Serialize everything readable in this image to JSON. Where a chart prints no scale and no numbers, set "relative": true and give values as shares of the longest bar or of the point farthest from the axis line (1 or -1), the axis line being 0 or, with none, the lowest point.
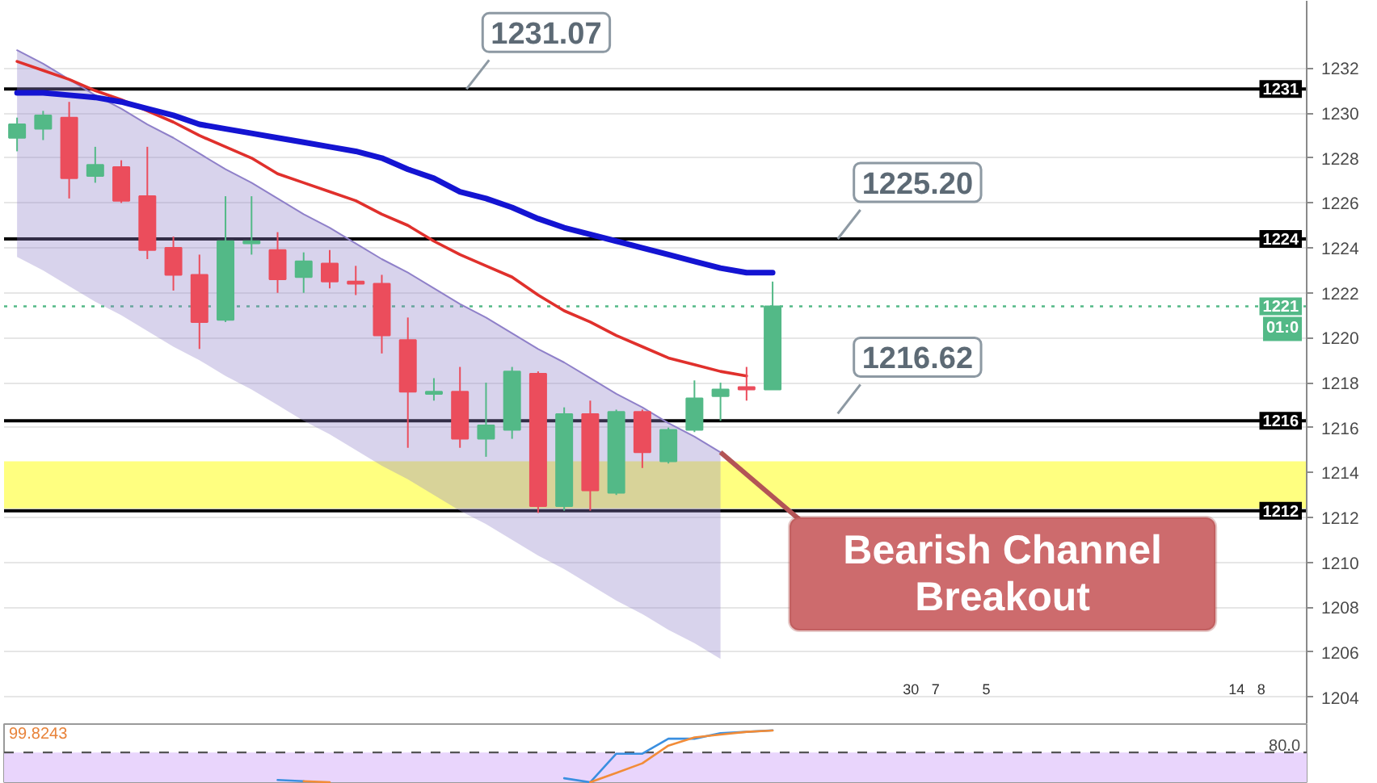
{
  "chart_data": [
    {
      "type": "candlestick",
      "categories": [
        null,
        null,
        null,
        null,
        null,
        null,
        null,
        null,
        null,
        null,
        null,
        null,
        null,
        null,
        null,
        null,
        null,
        null,
        null,
        null,
        null,
        null,
        null,
        null,
        null,
        null,
        null,
        null,
        null,
        null,
        null,
        null,
        null,
        null,
        null,
        null,
        null,
        null,
        null,
        null,
        null,
        null,
        null,
        null,
        null,
        null,
        null,
        null,
        null,
        null
      ],
      "ohlc": [
        [
          1228.9,
          1229.8,
          1228.3,
          1229.5
        ],
        [
          1229.3,
          1230.1,
          1228.8,
          1229.9
        ],
        [
          1229.8,
          1230.5,
          1226.2,
          1227.1
        ],
        [
          1227.2,
          1228.5,
          1226.9,
          1227.7
        ],
        [
          1227.6,
          1227.9,
          1226.0,
          1226.1
        ],
        [
          1226.3,
          1228.5,
          1223.5,
          1223.9
        ],
        [
          1224.0,
          1224.5,
          1222.1,
          1222.8
        ],
        [
          1222.8,
          1223.7,
          1219.5,
          1220.7
        ],
        [
          1220.8,
          1226.3,
          1220.7,
          1224.3
        ],
        [
          1224.2,
          1226.3,
          1223.7,
          1224.3
        ],
        [
          1223.9,
          1224.7,
          1222.0,
          1222.6
        ],
        [
          1222.7,
          1223.8,
          1222.0,
          1223.4
        ],
        [
          1223.3,
          1223.9,
          1222.2,
          1222.5
        ],
        [
          1222.5,
          1223.2,
          1221.9,
          1222.4
        ],
        [
          1222.4,
          1222.8,
          1219.3,
          1220.1
        ],
        [
          1219.9,
          1220.9,
          1215.1,
          1217.6
        ],
        [
          1217.5,
          1218.2,
          1217.2,
          1217.6
        ],
        [
          1217.6,
          1218.7,
          1215.1,
          1215.5
        ],
        [
          1215.5,
          1218.0,
          1214.7,
          1216.1
        ],
        [
          1215.9,
          1218.7,
          1215.5,
          1218.5
        ],
        [
          1218.4,
          1218.5,
          1212.2,
          1212.5
        ],
        [
          1212.5,
          1216.9,
          1212.3,
          1216.6
        ],
        [
          1216.6,
          1217.2,
          1212.3,
          1213.2
        ],
        [
          1213.1,
          1216.8,
          1213.0,
          1216.7
        ],
        [
          1216.7,
          1216.8,
          1214.2,
          1214.9
        ],
        [
          1214.5,
          1216.0,
          1214.4,
          1215.9
        ],
        [
          1215.9,
          1218.1,
          1215.8,
          1217.3
        ],
        [
          1217.4,
          1218.0,
          1216.3,
          1217.7
        ],
        [
          1217.8,
          1218.7,
          1217.2,
          1217.7
        ],
        [
          1217.7,
          1222.5,
          1217.7,
          1221.4
        ],
        null,
        null,
        null,
        null,
        null,
        null,
        null,
        null,
        null,
        null,
        null,
        null,
        null,
        null,
        null,
        null,
        null,
        null,
        null,
        null
      ],
      "colors": [
        "#53b987",
        "#53b987",
        "#eb4d5c",
        "#53b987",
        "#eb4d5c",
        "#eb4d5c",
        "#eb4d5c",
        "#eb4d5c",
        "#53b987",
        "#53b987",
        "#eb4d5c",
        "#53b987",
        "#eb4d5c",
        "#eb4d5c",
        "#eb4d5c",
        "#eb4d5c",
        "#53b987",
        "#eb4d5c",
        "#53b987",
        "#53b987",
        "#eb4d5c",
        "#53b987",
        "#eb4d5c",
        "#53b987",
        "#eb4d5c",
        "#53b987",
        "#53b987",
        "#53b987",
        "#eb4d5c",
        "#53b987",
        null,
        null,
        null,
        null,
        null,
        null,
        null,
        null,
        null,
        null,
        null,
        null,
        null,
        null,
        null,
        null,
        null,
        null,
        null,
        null
      ],
      "series": [
        {
          "type": "line",
          "color": "#8f80c9",
          "values": [
            1232.8,
            1232.2,
            1231.5,
            1230.8,
            1230.2,
            1229.5,
            1228.9,
            1228.2,
            1227.5,
            1226.9,
            1226.2,
            1225.5,
            1224.9,
            1224.2,
            1223.5,
            1222.9,
            1222.2,
            1221.5,
            1220.9,
            1220.2,
            1219.5,
            1218.9,
            1218.2,
            1217.5,
            1216.9,
            1216.2,
            1215.6,
            1214.9,
            null,
            null,
            null,
            null,
            null,
            null,
            null,
            null,
            null,
            null,
            null,
            null,
            null,
            null,
            null,
            null,
            null,
            null,
            null,
            null,
            null,
            null
          ],
          "upper": [
            1232.8,
            1232.2,
            1231.5,
            1230.8,
            1230.2,
            1229.5,
            1228.9,
            1228.2,
            1227.5,
            1226.9,
            1226.2,
            1225.5,
            1224.9,
            1224.2,
            1223.5,
            1222.9,
            1222.2,
            1221.5,
            1220.9,
            1220.2,
            1219.5,
            1218.9,
            1218.2,
            1217.5,
            1216.9,
            1216.2,
            1215.6,
            1214.9,
            null,
            null,
            null,
            null,
            null,
            null,
            null,
            null,
            null,
            null,
            null,
            null,
            null,
            null,
            null,
            null,
            null,
            null,
            null,
            null,
            null,
            null
          ],
          "lower": [
            1223.6,
            1223.0,
            1222.3,
            1221.6,
            1221.0,
            1220.3,
            1219.6,
            1219.0,
            1218.3,
            1217.7,
            1217.0,
            1216.3,
            1215.7,
            1215.0,
            1214.3,
            1213.7,
            1213.0,
            1212.3,
            1211.7,
            1211.0,
            1210.3,
            1209.7,
            1209.0,
            1208.3,
            1207.7,
            1207.0,
            1206.4,
            1205.7,
            null,
            null,
            null,
            null,
            null,
            null,
            null,
            null,
            null,
            null,
            null,
            null,
            null,
            null,
            null,
            null,
            null,
            null,
            null,
            null,
            null,
            null
          ]
        },
        {
          "type": "line",
          "color": "#e0302c",
          "values": [
            1232.3,
            1231.9,
            1231.5,
            1231.0,
            1230.6,
            1230.1,
            1229.6,
            1229.0,
            1228.5,
            1228.0,
            1227.3,
            1226.9,
            1226.5,
            1226.1,
            1225.5,
            1225.0,
            1224.3,
            1223.7,
            1223.2,
            1222.7,
            1221.9,
            1221.2,
            1220.7,
            1220.1,
            1219.6,
            1219.1,
            1218.8,
            1218.5,
            1218.3,
            null,
            null,
            null,
            null,
            null,
            null,
            null,
            null,
            null,
            null,
            null,
            null,
            null,
            null,
            null,
            null,
            null,
            null,
            null,
            null,
            null
          ]
        },
        {
          "type": "line",
          "color": "#1414d2",
          "values": [
            1230.9,
            1230.9,
            1230.8,
            1230.7,
            1230.5,
            1230.2,
            1229.9,
            1229.5,
            1229.3,
            1229.1,
            1228.9,
            1228.7,
            1228.5,
            1228.3,
            1228.0,
            1227.5,
            1227.1,
            1226.5,
            1226.2,
            1225.8,
            1225.3,
            1224.9,
            1224.6,
            1224.3,
            1224.0,
            1223.7,
            1223.4,
            1223.1,
            1222.9,
            1222.9,
            null,
            null,
            null,
            null,
            null,
            null,
            null,
            null,
            null,
            null,
            null,
            null,
            null,
            null,
            null,
            null,
            null,
            null,
            null,
            null
          ]
        }
      ],
      "ylim": [
        1202.8,
        1235.0
      ],
      "yticks": [
        1204,
        1206,
        1208,
        1210,
        1212,
        1214,
        1216,
        1218,
        1220,
        1222,
        1224,
        1226,
        1228,
        1230,
        1232
      ],
      "grid": "y",
      "tick_labels": "y",
      "ref_lines": [
        {
          "axis": "y",
          "value": 1231.07,
          "label": "1231",
          "color": "#000000"
        },
        {
          "axis": "y",
          "value": 1224.4,
          "label": "1224",
          "color": "#000000"
        },
        {
          "axis": "y",
          "value": 1221.4,
          "label": "1221\n01:0",
          "color": "#53b987",
          "line_style": "dotted"
        },
        {
          "axis": "y",
          "value": 1216.3,
          "label": "1216",
          "color": "#000000"
        },
        {
          "axis": "y",
          "value": 1212.3,
          "label": "1212",
          "color": "#000000"
        }
      ],
      "bands": [
        {
          "axis": "y",
          "from": 1212.4,
          "to": 1214.5,
          "color": "#ffff80"
        }
      ],
      "annotations": [
        {
          "text": "1231.07",
          "y": 1231.07
        },
        {
          "text": "1225.20",
          "y": 1224.4
        },
        {
          "text": "1216.62",
          "y": 1216.62
        },
        "Bearish Channel Breakout",
        "30",
        "7",
        "5",
        "14",
        "8"
      ]
    },
    {
      "type": "line",
      "relative": true,
      "categories": [
        null,
        null,
        null,
        null,
        null,
        null,
        null,
        null,
        null,
        null,
        null,
        null,
        null,
        null,
        null,
        null,
        null,
        null,
        null,
        null,
        null,
        null,
        null,
        null,
        null,
        null,
        null,
        null,
        null,
        null,
        null,
        null,
        null,
        null,
        null,
        null,
        null,
        null,
        null,
        null,
        null,
        null,
        null,
        null,
        null,
        null,
        null,
        null,
        null,
        null
      ],
      "series": [
        {
          "color": "#3a8fe0",
          "values": [
            null,
            null,
            null,
            null,
            null,
            null,
            null,
            null,
            null,
            null,
            0.043,
            0.021,
            null,
            null,
            null,
            null,
            null,
            null,
            null,
            null,
            null,
            0.077,
            0.0,
            0.549,
            0.549,
            0.838,
            0.838,
            0.945,
            0.97,
            1.0,
            null,
            null,
            null,
            null,
            null,
            null,
            null,
            null,
            null,
            null,
            null,
            null,
            null,
            null,
            null,
            null,
            null,
            null,
            null,
            null
          ]
        },
        {
          "color": "#f28c38",
          "values": [
            null,
            null,
            null,
            null,
            null,
            null,
            null,
            null,
            null,
            null,
            null,
            0.021,
            0.0,
            null,
            null,
            null,
            null,
            null,
            null,
            null,
            null,
            null,
            0.0,
            0.179,
            0.364,
            0.706,
            0.864,
            0.917,
            0.97,
            0.996,
            null,
            null,
            null,
            null,
            null,
            null,
            null,
            null,
            null,
            null,
            null,
            null,
            null,
            null,
            null,
            null,
            null,
            null,
            null,
            null
          ]
        }
      ],
      "tick_labels": false,
      "ref_lines": [
        {
          "axis": "y",
          "value": 0.574,
          "color": "#555555",
          "line_style": "dashed"
        }
      ],
      "bands": [
        {
          "axis": "y",
          "from": 0,
          "to": 0.574,
          "color": "#e9d5fc"
        }
      ],
      "annotations": [
        {
          "text": "80.0",
          "y": 0.574
        },
        "99.8243"
      ]
    }
  ]
}
